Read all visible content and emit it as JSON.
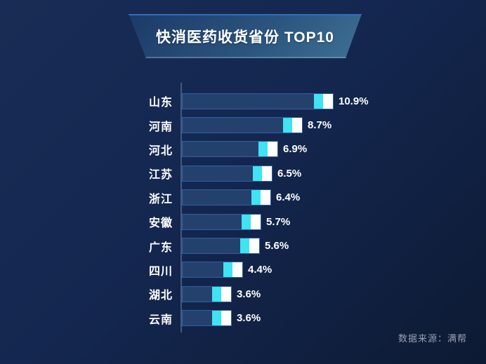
{
  "title": "快消医药收货省份 TOP10",
  "source_note": "数据来源：满帮",
  "chart_data": {
    "type": "bar",
    "orientation": "horizontal",
    "title": "快消医药收货省份 TOP10",
    "categories": [
      "山东",
      "河南",
      "河北",
      "江苏",
      "浙江",
      "安徽",
      "广东",
      "四川",
      "湖北",
      "云南"
    ],
    "values": [
      10.9,
      8.7,
      6.9,
      6.5,
      6.4,
      5.7,
      5.6,
      4.4,
      3.6,
      3.6
    ],
    "value_labels": [
      "10.9%",
      "8.7%",
      "6.9%",
      "6.5%",
      "6.4%",
      "5.7%",
      "5.6%",
      "4.4%",
      "3.6%",
      "3.6%"
    ],
    "unit": "%",
    "xlabel": "",
    "ylabel": "",
    "xlim": [
      0,
      11
    ],
    "grid": false,
    "legend": false,
    "value_labels_position": "right-of-bar",
    "bar_style": "dark-blue fill with cyan and white highlight segments at tip"
  },
  "colors": {
    "bg_top": "#182C55",
    "bg_mid": "#142750",
    "bg_bottom": "#0D1A33",
    "banner_dark": "#1C3A67",
    "banner_mid": "#2A547E",
    "banner_light": "#3F7094",
    "banner_edge": "#2F6CC4",
    "bar_fill": "#24416E",
    "bar_border": "#2D5FA8",
    "tip_cyan": "#3FE3F2",
    "tip_white": "#FFFFFF",
    "axis_line": "#46597C",
    "text_primary": "#FFFFFF",
    "source_text": "#97A0B3"
  }
}
